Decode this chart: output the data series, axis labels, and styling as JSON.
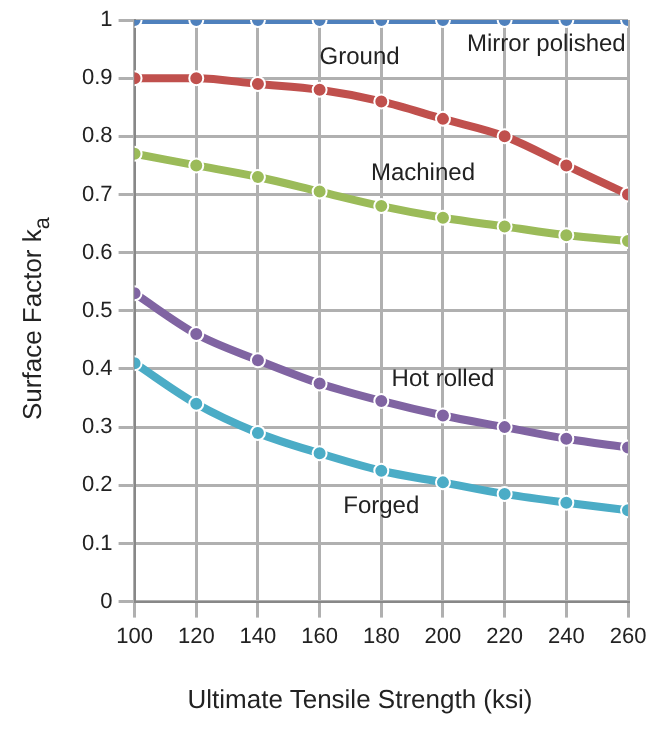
{
  "chart_data": {
    "type": "line",
    "xlabel": "Ultimate Tensile Strength (ksi)",
    "ylabel": "Surface Factor k$_{a}$",
    "x": [
      100,
      120,
      140,
      160,
      180,
      200,
      220,
      240,
      260
    ],
    "series": [
      {
        "name": "Mirror polished",
        "color": "#4f81bd",
        "values": [
          1,
          1,
          1,
          1,
          1,
          1,
          1,
          1,
          1
        ]
      },
      {
        "name": "Ground",
        "color": "#c0504d",
        "values": [
          0.9,
          0.9,
          0.89,
          0.88,
          0.86,
          0.83,
          0.8,
          0.75,
          0.7
        ]
      },
      {
        "name": "Machined",
        "color": "#9bbb59",
        "values": [
          0.77,
          0.75,
          0.73,
          0.705,
          0.68,
          0.66,
          0.645,
          0.63,
          0.62
        ]
      },
      {
        "name": "Hot rolled",
        "color": "#8064a2",
        "values": [
          0.53,
          0.46,
          0.415,
          0.375,
          0.345,
          0.32,
          0.3,
          0.28,
          0.265
        ]
      },
      {
        "name": "Forged",
        "color": "#4bacc6",
        "values": [
          0.41,
          0.34,
          0.29,
          0.255,
          0.225,
          0.205,
          0.185,
          0.17,
          0.157
        ]
      }
    ],
    "xlim": [
      100,
      260
    ],
    "xticks": [
      100,
      120,
      140,
      160,
      180,
      200,
      220,
      240,
      260
    ],
    "ylim": [
      0,
      1
    ],
    "yticks": [
      0,
      0.1,
      0.2,
      0.3,
      0.4,
      0.5,
      0.6,
      0.7,
      0.8,
      0.9,
      1
    ],
    "grid": true,
    "legend": false,
    "marker": "circle",
    "line_style": "solid"
  }
}
